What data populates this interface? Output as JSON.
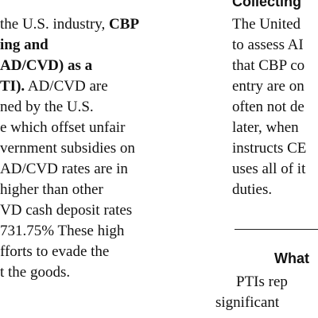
{
  "left_column": {
    "lines": [
      {
        "parts": [
          {
            "text": "the U.S. industry, ",
            "bold": false
          },
          {
            "text": "CBP",
            "bold": true
          }
        ]
      },
      {
        "parts": [
          {
            "text": "ing and",
            "bold": true
          }
        ]
      },
      {
        "parts": [
          {
            "text": "AD/CVD) as a",
            "bold": true
          }
        ]
      },
      {
        "parts": [
          {
            "text": "TI).",
            "bold": true
          },
          {
            "text": " AD/CVD are",
            "bold": false
          }
        ]
      },
      {
        "parts": [
          {
            "text": "ned by the U.S.",
            "bold": false
          }
        ]
      },
      {
        "parts": [
          {
            "text": "e which offset unfair",
            "bold": false
          }
        ]
      },
      {
        "parts": [
          {
            "text": "vernment subsidies on",
            "bold": false
          }
        ]
      },
      {
        "parts": [
          {
            "text": "AD/CVD rates are in",
            "bold": false
          }
        ]
      },
      {
        "parts": [
          {
            "text": "higher than other",
            "bold": false
          }
        ]
      },
      {
        "parts": [
          {
            "text": "VD cash deposit rates",
            "bold": false
          }
        ]
      },
      {
        "parts": [
          {
            "text": "731.75% These high",
            "bold": false
          }
        ]
      },
      {
        "parts": [
          {
            "text": "fforts to evade the",
            "bold": false
          }
        ]
      },
      {
        "parts": [
          {
            "text": "t the goods.",
            "bold": false
          }
        ]
      }
    ]
  },
  "right_column": {
    "heading_top": "Collecting",
    "lines": [
      "The United",
      "to assess AI",
      "that CBP co",
      "entry are on",
      "often not de",
      "later, when",
      "instructs CE",
      "uses all of it",
      "duties."
    ],
    "heading_bottom": "What",
    "bottom_lines": [
      "PTIs rep",
      "significant"
    ]
  }
}
